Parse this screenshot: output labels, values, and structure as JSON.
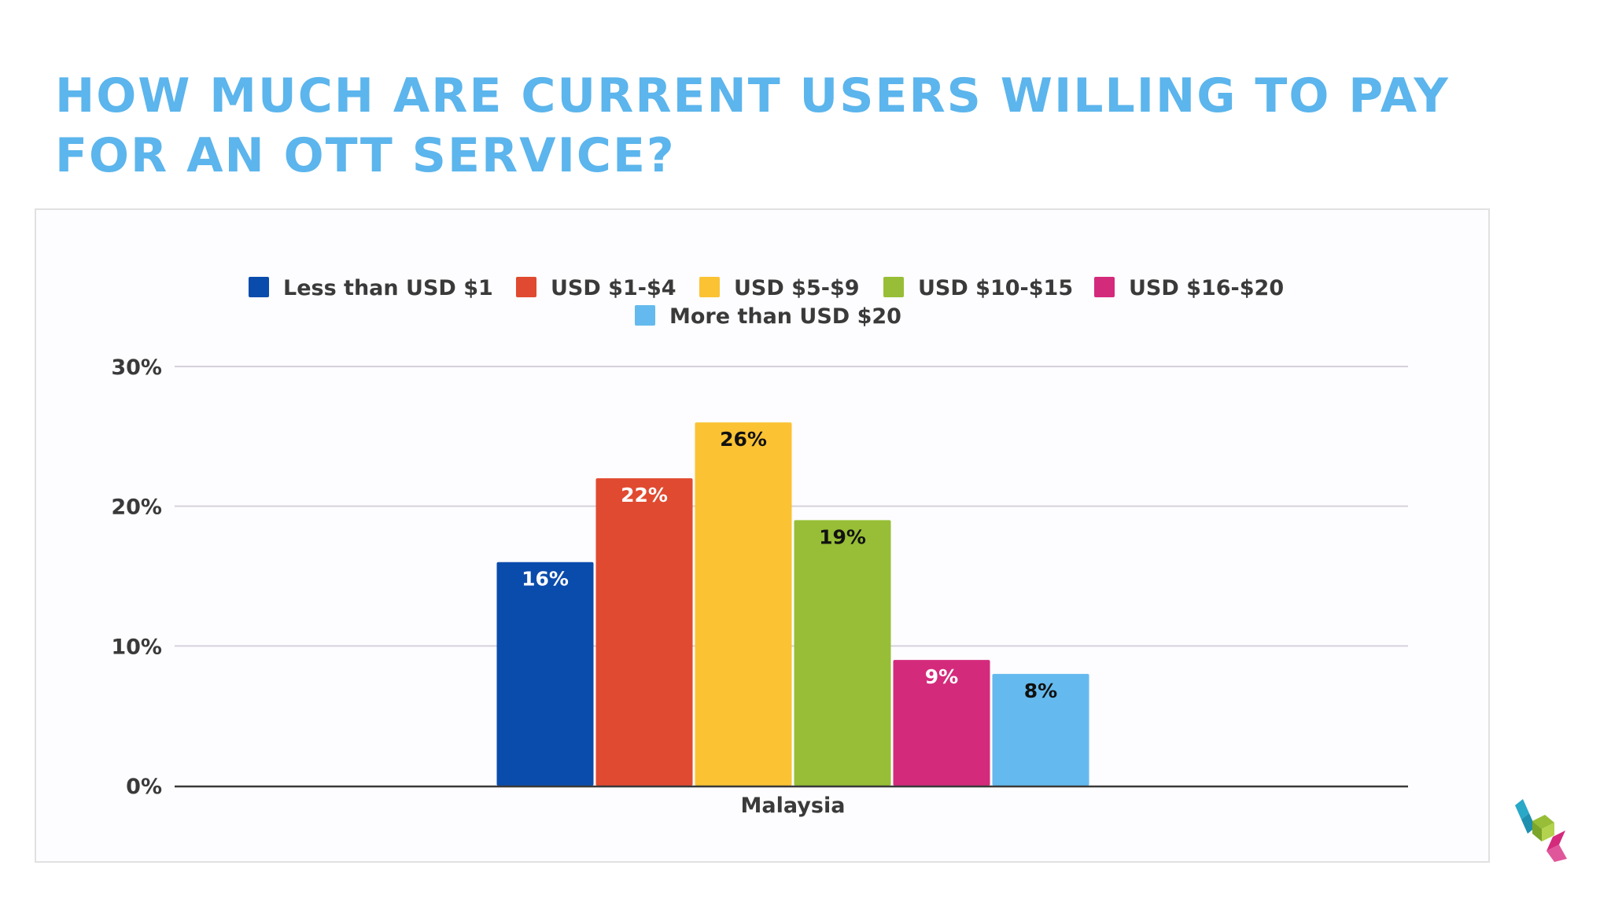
{
  "slide": {
    "title": "HOW MUCH ARE CURRENT USERS WILLING TO PAY FOR AN OTT SERVICE?",
    "title_color": "#5cb5ec"
  },
  "chart_data": {
    "type": "bar",
    "title": "",
    "xlabel": "",
    "ylabel": "",
    "categories": [
      "Malaysia"
    ],
    "series": [
      {
        "name": "Less than USD $1",
        "values": [
          16
        ],
        "label": "16%",
        "color": "#0a4cac"
      },
      {
        "name": "USD $1-$4",
        "values": [
          22
        ],
        "label": "22%",
        "color": "#e04a30"
      },
      {
        "name": "USD $5-$9",
        "values": [
          26
        ],
        "label": "26%",
        "color": "#fbc233"
      },
      {
        "name": "USD $10-$15",
        "values": [
          19
        ],
        "label": "19%",
        "color": "#97be36"
      },
      {
        "name": "USD $16-$20",
        "values": [
          9
        ],
        "label": "9%",
        "color": "#d42a7c"
      },
      {
        "name": "More than USD $20",
        "values": [
          8
        ],
        "label": "8%",
        "color": "#64baee"
      }
    ],
    "ylim": [
      0,
      30
    ],
    "yticks": [
      {
        "value": 0,
        "label": "0%"
      },
      {
        "value": 10,
        "label": "10%"
      },
      {
        "value": 20,
        "label": "20%"
      },
      {
        "value": 30,
        "label": "30%"
      }
    ],
    "grid": true,
    "legend": "top-center",
    "label_colors": {
      "dark_bar": "#ffffff",
      "light_bar": "#111111"
    }
  }
}
